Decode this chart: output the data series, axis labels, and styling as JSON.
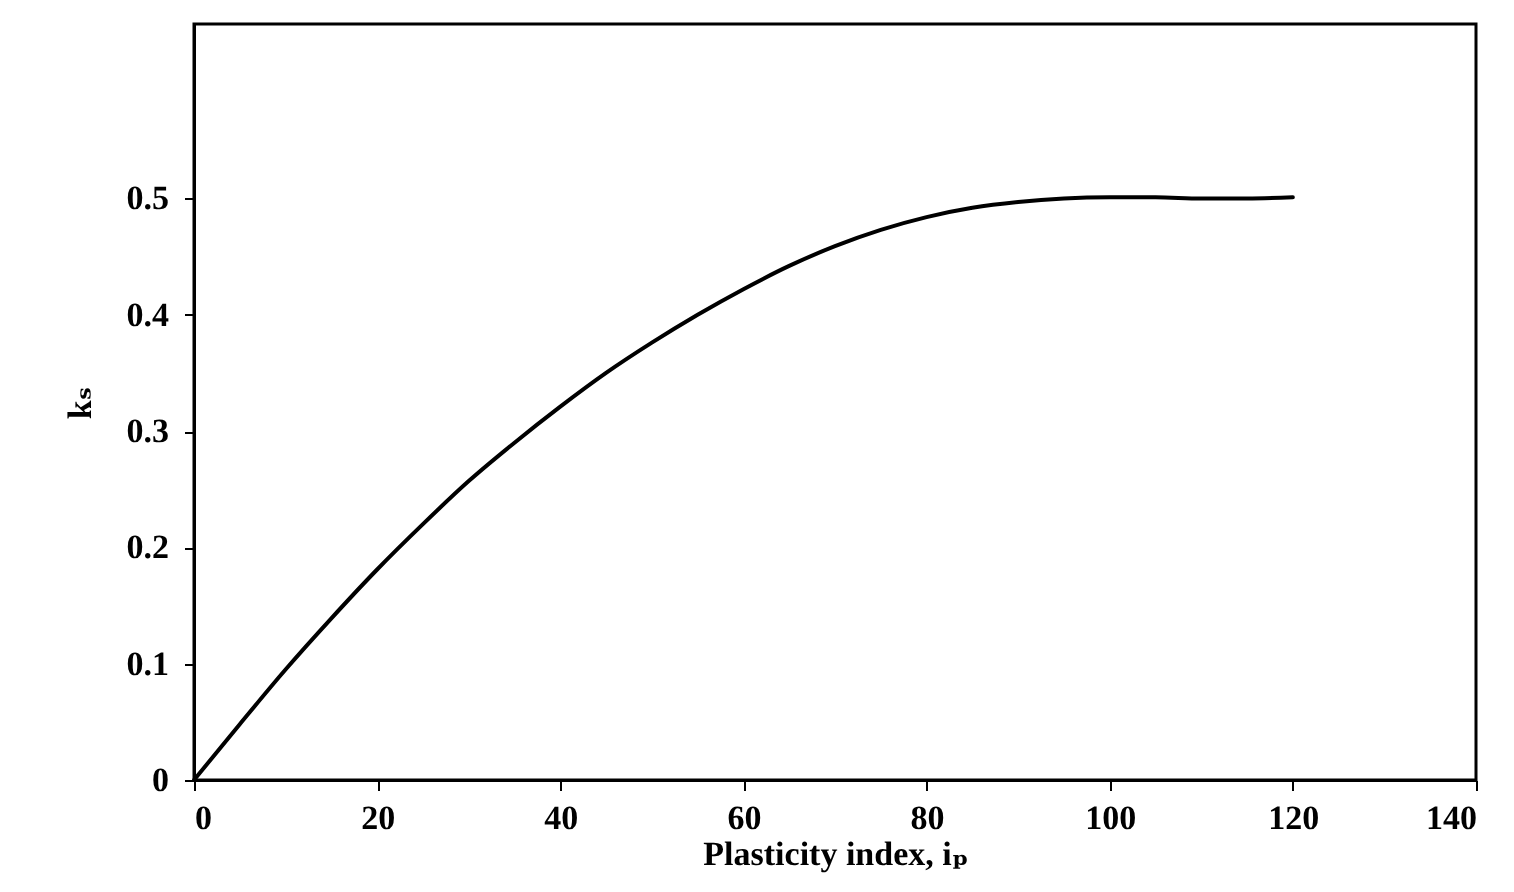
{
  "chart_data": {
    "type": "line",
    "xlabel": "Plasticity index, iₚ",
    "ylabel": "kₛ",
    "x": [
      0,
      5,
      10,
      15,
      20,
      25,
      30,
      35,
      40,
      45,
      50,
      55,
      60,
      65,
      70,
      75,
      80,
      85,
      90,
      95,
      100,
      105,
      110,
      115,
      120
    ],
    "series": [
      {
        "color": "#000000",
        "values": [
          0,
          0.048,
          0.095,
          0.139,
          0.181,
          0.22,
          0.257,
          0.29,
          0.321,
          0.35,
          0.376,
          0.4,
          0.422,
          0.442,
          0.459,
          0.473,
          0.484,
          0.492,
          0.497,
          0.5,
          0.501,
          0.501,
          0.5,
          0.5,
          0.501
        ]
      }
    ],
    "xlim": [
      0,
      140
    ],
    "xticks": [
      0,
      20,
      40,
      60,
      80,
      100,
      120,
      140
    ],
    "ylim": [
      0,
      0.65
    ],
    "yticks": [
      0,
      0.1,
      0.2,
      0.3,
      0.4,
      0.5
    ],
    "grid": false,
    "marker": "none",
    "line_style": "solid"
  }
}
